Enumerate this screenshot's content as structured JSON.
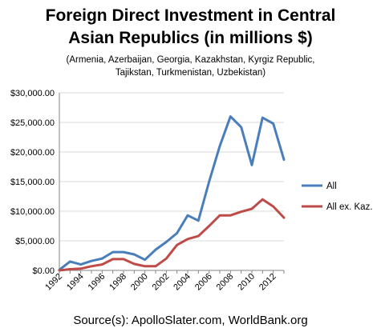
{
  "chart_data": {
    "type": "line",
    "title_line1": "Foreign Direct Investment in Central",
    "title_line2": "Asian Republics (in millions $)",
    "subtitle_line1": "(Armenia, Azerbaijan, Georgia, Kazakhstan, Kyrgiz Republic,",
    "subtitle_line2": "Tajikstan, Turkmenistan, Uzbekistan)",
    "source": "Source(s): ApolloSlater.com, WorldBank.org",
    "x": [
      1992,
      1993,
      1994,
      1995,
      1996,
      1997,
      1998,
      1999,
      2000,
      2001,
      2002,
      2003,
      2004,
      2005,
      2006,
      2007,
      2008,
      2009,
      2010,
      2011,
      2012,
      2013
    ],
    "x_ticks": [
      "1992",
      "1994",
      "1996",
      "1998",
      "2000",
      "2002",
      "2004",
      "2006",
      "2008",
      "2010",
      "2012"
    ],
    "y_ticks": [
      "$0.00",
      "$5,000.00",
      "$10,000.00",
      "$15,000.00",
      "$20,000.00",
      "$25,000.00",
      "$30,000.00"
    ],
    "ylim": [
      0,
      30000
    ],
    "xlim": [
      1992,
      2013
    ],
    "grid": "horizontal",
    "legend_position": "right",
    "series": [
      {
        "name": "All",
        "color": "#4a7ebb",
        "values": [
          100,
          1500,
          1000,
          1600,
          2000,
          3100,
          3100,
          2700,
          1800,
          3500,
          4800,
          6300,
          9300,
          8400,
          15000,
          21000,
          26000,
          24200,
          17800,
          25800,
          24800,
          18700
        ]
      },
      {
        "name": "All ex. Kaz.",
        "color": "#be4b48",
        "values": [
          0,
          200,
          300,
          700,
          1000,
          1900,
          1900,
          1100,
          700,
          700,
          2000,
          4300,
          5300,
          5800,
          7500,
          9300,
          9300,
          9900,
          10400,
          12000,
          10800,
          8900
        ]
      }
    ]
  }
}
